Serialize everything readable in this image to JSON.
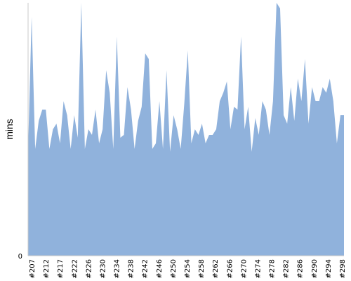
{
  "chart_data": {
    "type": "area",
    "title": "",
    "xlabel": "",
    "ylabel": "mins",
    "y_tick_labels": [
      "0"
    ],
    "ylim": [
      0,
      90
    ],
    "grid": false,
    "legend": "none",
    "colors": {
      "fill": "#90b2dc",
      "axis": "#c8c8c8"
    },
    "x_tick_labels": [
      "#207",
      "#212",
      "#217",
      "#222",
      "#226",
      "#230",
      "#234",
      "#238",
      "#242",
      "#246",
      "#250",
      "#254",
      "#258",
      "#262",
      "#266",
      "#270",
      "#274",
      "#278",
      "#282",
      "#286",
      "#290",
      "#294",
      "#298"
    ],
    "series": [
      {
        "values": [
          38,
          85,
          38,
          48,
          52,
          52,
          38,
          45,
          47,
          40,
          55,
          50,
          38,
          50,
          42,
          90,
          38,
          45,
          43,
          52,
          40,
          45,
          66,
          58,
          38,
          78,
          42,
          43,
          60,
          52,
          38,
          48,
          53,
          72,
          70,
          38,
          40,
          55,
          38,
          66,
          37,
          50,
          45,
          38,
          54,
          73,
          40,
          45,
          43,
          47,
          40,
          43,
          43,
          45,
          55,
          58,
          62,
          45,
          53,
          52,
          78,
          45,
          53,
          37,
          49,
          43,
          55,
          52,
          43,
          55,
          90,
          88,
          50,
          47,
          60,
          48,
          63,
          55,
          70,
          47,
          60,
          55,
          55,
          60,
          58,
          63,
          55,
          40,
          50,
          50
        ]
      }
    ]
  }
}
